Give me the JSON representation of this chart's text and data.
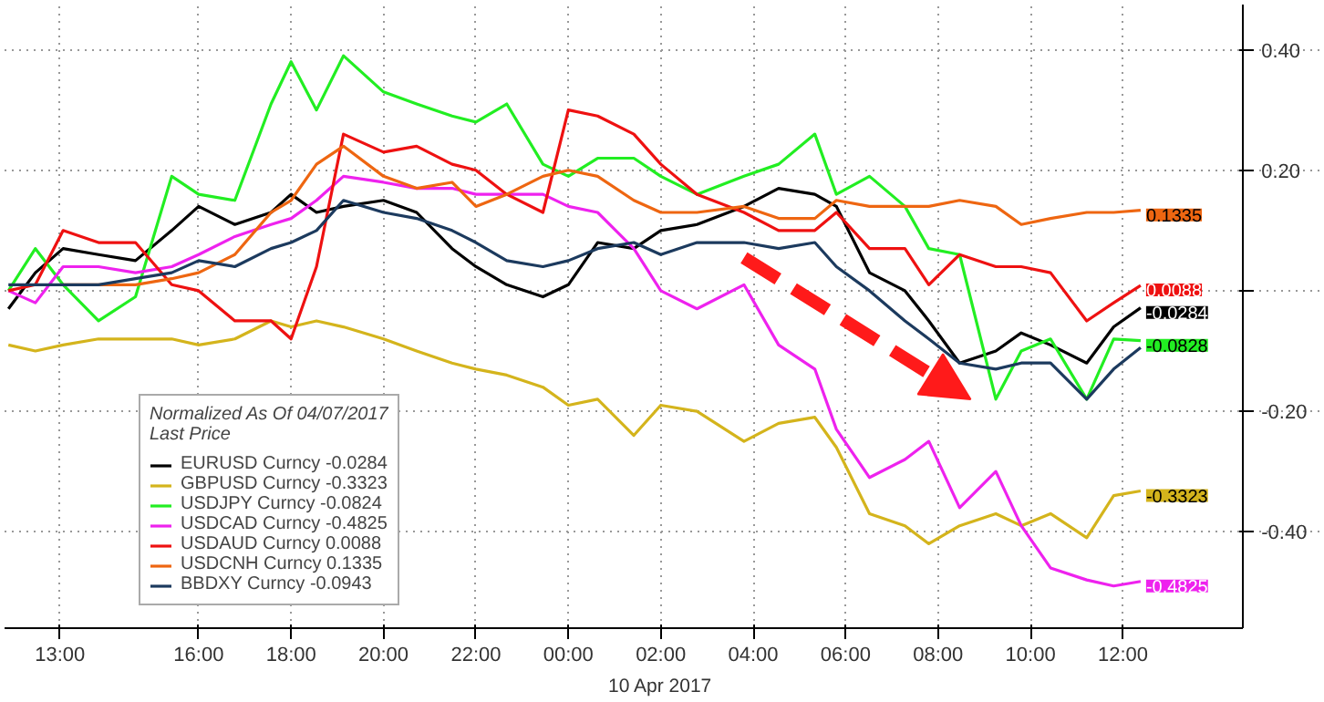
{
  "chart_data": {
    "type": "line",
    "legend_title": "Normalized As Of 04/07/2017\nLast Price",
    "legend": "bottom left",
    "grid": true,
    "line_style": "solid",
    "marker": "none",
    "x": [
      "2017-04-09T11:53",
      "2017-04-09T12:28",
      "2017-04-09T13:04",
      "2017-04-09T13:50",
      "2017-04-09T14:38",
      "2017-04-09T15:25",
      "2017-04-09T16:00",
      "2017-04-09T16:47",
      "2017-04-09T17:34",
      "2017-04-09T18:00",
      "2017-04-09T18:33",
      "2017-04-09T19:08",
      "2017-04-09T20:00",
      "2017-04-09T20:43",
      "2017-04-09T21:29",
      "2017-04-09T22:00",
      "2017-04-09T22:40",
      "2017-04-09T23:27",
      "2017-04-10T00:00",
      "2017-04-10T00:38",
      "2017-04-10T01:25",
      "2017-04-10T02:00",
      "2017-04-10T02:47",
      "2017-04-10T03:48",
      "2017-04-10T04:33",
      "2017-04-10T05:20",
      "2017-04-10T05:48",
      "2017-04-10T06:31",
      "2017-04-10T07:17",
      "2017-04-10T07:48",
      "2017-04-10T08:28",
      "2017-04-10T09:15",
      "2017-04-10T09:48",
      "2017-04-10T10:26",
      "2017-04-10T11:13",
      "2017-04-10T11:48",
      "2017-04-10T12:23"
    ],
    "xlim": [
      "2017-04-09T11:48",
      "2017-04-10T14:36"
    ],
    "xticks": [
      {
        "value": "2017-04-09T13:00",
        "label": "13:00"
      },
      {
        "value": "2017-04-09T16:00",
        "label": "16:00"
      },
      {
        "value": "2017-04-09T18:00",
        "label": "18:00"
      },
      {
        "value": "2017-04-09T20:00",
        "label": "20:00"
      },
      {
        "value": "2017-04-09T22:00",
        "label": "22:00"
      },
      {
        "value": "2017-04-10T00:00",
        "label": "00:00"
      },
      {
        "value": "2017-04-10T02:00",
        "label": "02:00"
      },
      {
        "value": "2017-04-10T04:00",
        "label": "04:00"
      },
      {
        "value": "2017-04-10T06:00",
        "label": "06:00"
      },
      {
        "value": "2017-04-10T08:00",
        "label": "08:00"
      },
      {
        "value": "2017-04-10T10:00",
        "label": "10:00"
      },
      {
        "value": "2017-04-10T12:00",
        "label": "12:00"
      }
    ],
    "ylim": [
      -0.56,
      0.475
    ],
    "yticks": [
      {
        "value": 0.4,
        "label": "0.40"
      },
      {
        "value": 0.2,
        "label": "0.20"
      },
      {
        "value": 0,
        "label": null
      },
      {
        "value": -0.2,
        "label": "-0.20"
      },
      {
        "value": -0.4,
        "label": "-0.40"
      }
    ],
    "series": [
      {
        "name": "EURUSD Curncy -0.0284",
        "color": "#000000",
        "values": [
          -0.03,
          0.03,
          0.07,
          0.06,
          0.05,
          0.1,
          0.14,
          0.11,
          0.13,
          0.16,
          0.13,
          0.14,
          0.15,
          0.13,
          0.07,
          0.04,
          0.01,
          -0.01,
          0.01,
          0.08,
          0.07,
          0.1,
          0.11,
          0.14,
          0.17,
          0.16,
          0.14,
          0.03,
          0.0,
          -0.05,
          -0.12,
          -0.1,
          -0.07,
          -0.09,
          -0.12,
          -0.06,
          -0.0284
        ],
        "value_labels": [
          null,
          null,
          null,
          null,
          null,
          null,
          null,
          null,
          null,
          null,
          null,
          null,
          null,
          null,
          null,
          null,
          null,
          null,
          null,
          null,
          null,
          null,
          null,
          null,
          null,
          null,
          null,
          null,
          null,
          null,
          null,
          null,
          null,
          null,
          null,
          null,
          "-0.0284"
        ]
      },
      {
        "name": "GBPUSD Curncy -0.3323",
        "color": "#d4b41c",
        "values": [
          -0.09,
          -0.1,
          -0.09,
          -0.08,
          -0.08,
          -0.08,
          -0.09,
          -0.08,
          -0.05,
          -0.06,
          -0.05,
          -0.06,
          -0.08,
          -0.1,
          -0.12,
          -0.13,
          -0.14,
          -0.16,
          -0.19,
          -0.18,
          -0.24,
          -0.19,
          -0.2,
          -0.25,
          -0.22,
          -0.21,
          -0.26,
          -0.37,
          -0.39,
          -0.42,
          -0.39,
          -0.37,
          -0.39,
          -0.37,
          -0.41,
          -0.34,
          -0.3323
        ],
        "value_labels": [
          null,
          null,
          null,
          null,
          null,
          null,
          null,
          null,
          null,
          null,
          null,
          null,
          null,
          null,
          null,
          null,
          null,
          null,
          null,
          null,
          null,
          null,
          null,
          null,
          null,
          null,
          null,
          null,
          null,
          null,
          null,
          null,
          null,
          null,
          null,
          null,
          "-0.3323"
        ]
      },
      {
        "name": "USDJPY Curncy -0.0824",
        "color": "#22ee22",
        "values": [
          -0.0,
          0.07,
          0.01,
          -0.05,
          -0.01,
          0.19,
          0.16,
          0.15,
          0.31,
          0.38,
          0.3,
          0.39,
          0.33,
          0.31,
          0.29,
          0.28,
          0.31,
          0.21,
          0.19,
          0.22,
          0.22,
          0.19,
          0.16,
          0.19,
          0.21,
          0.26,
          0.16,
          0.19,
          0.14,
          0.07,
          0.06,
          -0.18,
          -0.1,
          -0.08,
          -0.18,
          -0.08,
          -0.0828
        ],
        "value_labels": [
          null,
          null,
          null,
          null,
          null,
          null,
          null,
          null,
          null,
          null,
          null,
          null,
          null,
          null,
          null,
          null,
          null,
          null,
          null,
          null,
          null,
          null,
          null,
          null,
          null,
          null,
          null,
          null,
          null,
          null,
          null,
          null,
          null,
          null,
          null,
          null,
          "-0.0828"
        ]
      },
      {
        "name": "USDCAD Curncy -0.4825",
        "color": "#ee22ee",
        "values": [
          -0.0,
          -0.02,
          0.04,
          0.04,
          0.03,
          0.04,
          0.06,
          0.09,
          0.11,
          0.12,
          0.15,
          0.19,
          0.18,
          0.17,
          0.17,
          0.16,
          0.16,
          0.16,
          0.14,
          0.13,
          0.07,
          -0.0,
          -0.03,
          0.01,
          -0.09,
          -0.13,
          -0.23,
          -0.31,
          -0.28,
          -0.25,
          -0.36,
          -0.3,
          -0.39,
          -0.46,
          -0.48,
          -0.49,
          -0.4825
        ],
        "value_labels": [
          null,
          null,
          null,
          null,
          null,
          null,
          null,
          null,
          null,
          null,
          null,
          null,
          null,
          null,
          null,
          null,
          null,
          null,
          null,
          null,
          null,
          null,
          null,
          null,
          null,
          null,
          null,
          null,
          null,
          null,
          null,
          null,
          null,
          null,
          null,
          null,
          "-0.4825"
        ]
      },
      {
        "name": "USDAUD Curncy 0.0088",
        "color": "#ee1111",
        "values": [
          -0.0,
          0.01,
          0.1,
          0.08,
          0.08,
          0.01,
          -0.0,
          -0.05,
          -0.05,
          -0.08,
          0.04,
          0.26,
          0.23,
          0.24,
          0.21,
          0.2,
          0.16,
          0.13,
          0.3,
          0.29,
          0.26,
          0.21,
          0.16,
          0.13,
          0.1,
          0.1,
          0.13,
          0.07,
          0.07,
          0.01,
          0.06,
          0.04,
          0.04,
          0.03,
          -0.05,
          -0.02,
          0.0088
        ],
        "value_labels": [
          null,
          null,
          null,
          null,
          null,
          null,
          null,
          null,
          null,
          null,
          null,
          null,
          null,
          null,
          null,
          null,
          null,
          null,
          null,
          null,
          null,
          null,
          null,
          null,
          null,
          null,
          null,
          null,
          null,
          null,
          null,
          null,
          null,
          null,
          null,
          null,
          "0.0088"
        ]
      },
      {
        "name": "USDCNH Curncy 0.1335",
        "color": "#ee6611",
        "values": [
          null,
          null,
          0.01,
          0.01,
          0.01,
          0.02,
          0.03,
          0.06,
          0.13,
          0.15,
          0.21,
          0.24,
          0.19,
          0.17,
          0.18,
          0.14,
          0.16,
          0.19,
          0.2,
          0.19,
          0.15,
          0.13,
          0.13,
          0.14,
          0.12,
          0.12,
          0.15,
          0.14,
          0.14,
          0.14,
          0.15,
          0.14,
          0.11,
          0.12,
          0.13,
          0.13,
          0.1335
        ],
        "value_labels": [
          null,
          null,
          null,
          null,
          null,
          null,
          null,
          null,
          null,
          null,
          null,
          null,
          null,
          null,
          null,
          null,
          null,
          null,
          null,
          null,
          null,
          null,
          null,
          null,
          null,
          null,
          null,
          null,
          null,
          null,
          null,
          null,
          null,
          null,
          null,
          null,
          "0.1335"
        ]
      },
      {
        "name": "BBDXY Curncy -0.0943",
        "color": "#1c3a5e",
        "values": [
          0.01,
          0.01,
          0.01,
          0.01,
          0.02,
          0.03,
          0.05,
          0.04,
          0.07,
          0.08,
          0.1,
          0.15,
          0.13,
          0.12,
          0.1,
          0.08,
          0.05,
          0.04,
          0.05,
          0.07,
          0.08,
          0.06,
          0.08,
          0.08,
          0.07,
          0.08,
          0.04,
          0.0,
          -0.05,
          -0.08,
          -0.12,
          -0.13,
          -0.12,
          -0.12,
          -0.18,
          -0.13,
          -0.0943
        ]
      }
    ],
    "annotations": [
      "10 Apr 2017"
    ]
  }
}
